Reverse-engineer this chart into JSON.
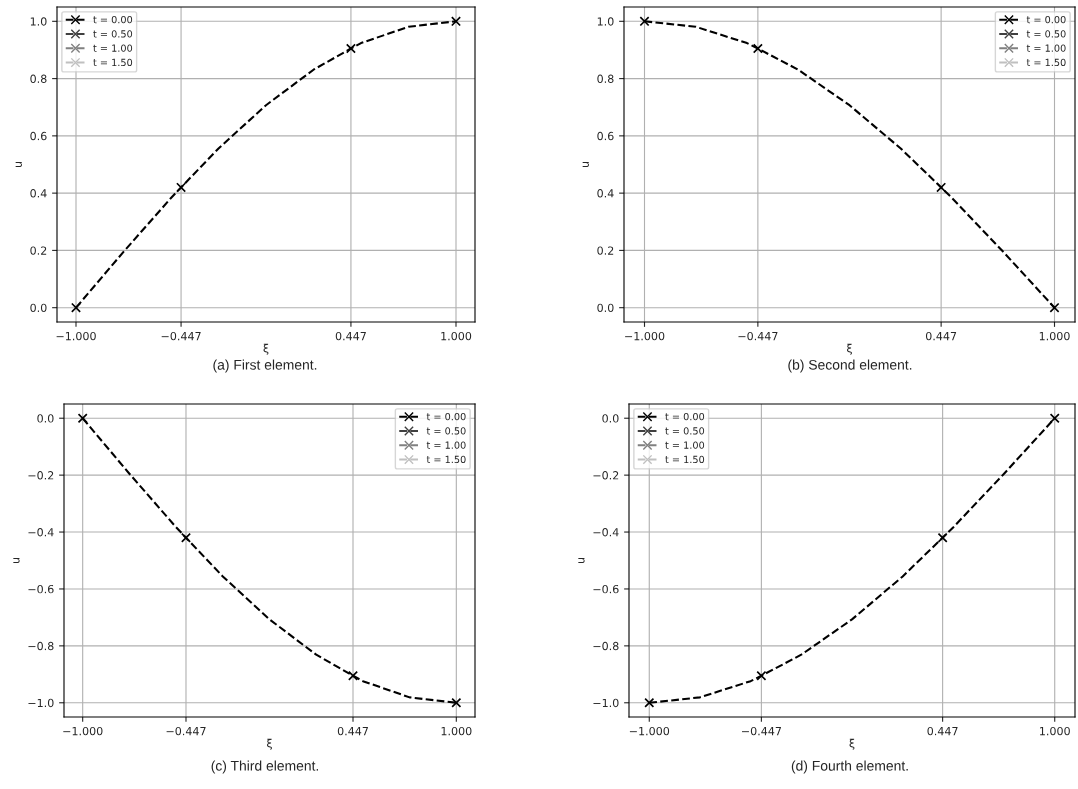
{
  "chart_data": [
    {
      "type": "line",
      "xlabel": "ξ",
      "ylabel": "u",
      "annotations": [
        "(a) First element."
      ],
      "xlim": [
        -1.1,
        1.1
      ],
      "xticks": [
        {
          "value": -1,
          "label": "−1.000"
        },
        {
          "value": -0.447,
          "label": "−0.447"
        },
        {
          "value": 0.447,
          "label": "0.447"
        },
        {
          "value": 1,
          "label": "1.000"
        }
      ],
      "ylim": [
        -0.05,
        1.05
      ],
      "yticks": [
        {
          "value": 0,
          "label": "0.0"
        },
        {
          "value": 0.2,
          "label": "0.2"
        },
        {
          "value": 0.4,
          "label": "0.4"
        },
        {
          "value": 0.6,
          "label": "0.6"
        },
        {
          "value": 0.8,
          "label": "0.8"
        },
        {
          "value": 1,
          "label": "1.0"
        }
      ],
      "grid": true,
      "legend": "top left",
      "series": [
        {
          "color": "#000000",
          "line_style": "dashed",
          "marker": "none",
          "x": [
            -1,
            -0.75,
            -0.5,
            -0.447,
            -0.25,
            0,
            0.25,
            0.447,
            0.5,
            0.75,
            1
          ],
          "values": [
            0,
            0.195,
            0.383,
            0.42,
            0.556,
            0.707,
            0.831,
            0.905,
            0.924,
            0.981,
            1
          ]
        },
        {
          "type": "scatter",
          "name": "t = 0.00",
          "color": "#000000",
          "line_style": "dashed",
          "marker": "cross",
          "x": [
            -1,
            -0.447,
            0.447,
            1
          ],
          "values": [
            0,
            0.42,
            0.905,
            1
          ]
        },
        {
          "type": "scatter",
          "name": "t = 0.50",
          "color": "#404040",
          "line_style": "dashed",
          "marker": "cross"
        },
        {
          "type": "scatter",
          "name": "t = 1.00",
          "color": "#808080",
          "line_style": "dashed",
          "marker": "cross"
        },
        {
          "type": "scatter",
          "name": "t = 1.50",
          "color": "#c0c0c0",
          "line_style": "dashed",
          "marker": "cross"
        }
      ]
    },
    {
      "type": "line",
      "xlabel": "ξ",
      "ylabel": "u",
      "annotations": [
        "(b) Second element."
      ],
      "xlim": [
        -1.1,
        1.1
      ],
      "xticks": [
        {
          "value": -1,
          "label": "−1.000"
        },
        {
          "value": -0.447,
          "label": "−0.447"
        },
        {
          "value": 0.447,
          "label": "0.447"
        },
        {
          "value": 1,
          "label": "1.000"
        }
      ],
      "ylim": [
        -0.05,
        1.05
      ],
      "yticks": [
        {
          "value": 0,
          "label": "0.0"
        },
        {
          "value": 0.2,
          "label": "0.2"
        },
        {
          "value": 0.4,
          "label": "0.4"
        },
        {
          "value": 0.6,
          "label": "0.6"
        },
        {
          "value": 0.8,
          "label": "0.8"
        },
        {
          "value": 1,
          "label": "1.0"
        }
      ],
      "grid": true,
      "legend": "top right",
      "series": [
        {
          "color": "#000000",
          "line_style": "dashed",
          "marker": "none",
          "x": [
            -1,
            -0.75,
            -0.5,
            -0.447,
            -0.25,
            0,
            0.25,
            0.447,
            0.5,
            0.75,
            1
          ],
          "values": [
            1,
            0.981,
            0.924,
            0.905,
            0.831,
            0.707,
            0.556,
            0.42,
            0.383,
            0.195,
            0
          ]
        },
        {
          "type": "scatter",
          "name": "t = 0.00",
          "color": "#000000",
          "line_style": "dashed",
          "marker": "cross",
          "x": [
            -1,
            -0.447,
            0.447,
            1
          ],
          "values": [
            1,
            0.905,
            0.42,
            0
          ]
        },
        {
          "type": "scatter",
          "name": "t = 0.50",
          "color": "#404040",
          "line_style": "dashed",
          "marker": "cross"
        },
        {
          "type": "scatter",
          "name": "t = 1.00",
          "color": "#808080",
          "line_style": "dashed",
          "marker": "cross"
        },
        {
          "type": "scatter",
          "name": "t = 1.50",
          "color": "#c0c0c0",
          "line_style": "dashed",
          "marker": "cross"
        }
      ]
    },
    {
      "type": "line",
      "xlabel": "ξ",
      "ylabel": "u",
      "annotations": [
        "(c) Third element."
      ],
      "xlim": [
        -1.1,
        1.1
      ],
      "xticks": [
        {
          "value": -1,
          "label": "−1.000"
        },
        {
          "value": -0.447,
          "label": "−0.447"
        },
        {
          "value": 0.447,
          "label": "0.447"
        },
        {
          "value": 1,
          "label": "1.000"
        }
      ],
      "ylim": [
        -1.05,
        0.05
      ],
      "yticks": [
        {
          "value": -1,
          "label": "−1.0"
        },
        {
          "value": -0.8,
          "label": "−0.8"
        },
        {
          "value": -0.6,
          "label": "−0.6"
        },
        {
          "value": -0.4,
          "label": "−0.4"
        },
        {
          "value": -0.2,
          "label": "−0.2"
        },
        {
          "value": 0,
          "label": "0.0"
        }
      ],
      "grid": true,
      "legend": "top right",
      "series": [
        {
          "color": "#000000",
          "line_style": "dashed",
          "marker": "none",
          "x": [
            -1,
            -0.75,
            -0.5,
            -0.447,
            -0.25,
            0,
            0.25,
            0.447,
            0.5,
            0.75,
            1
          ],
          "values": [
            0,
            -0.195,
            -0.383,
            -0.42,
            -0.556,
            -0.707,
            -0.831,
            -0.905,
            -0.924,
            -0.981,
            -1
          ]
        },
        {
          "type": "scatter",
          "name": "t = 0.00",
          "color": "#000000",
          "line_style": "dashed",
          "marker": "cross",
          "x": [
            -1,
            -0.447,
            0.447,
            1
          ],
          "values": [
            0,
            -0.42,
            -0.905,
            -1
          ]
        },
        {
          "type": "scatter",
          "name": "t = 0.50",
          "color": "#404040",
          "line_style": "dashed",
          "marker": "cross"
        },
        {
          "type": "scatter",
          "name": "t = 1.00",
          "color": "#808080",
          "line_style": "dashed",
          "marker": "cross"
        },
        {
          "type": "scatter",
          "name": "t = 1.50",
          "color": "#c0c0c0",
          "line_style": "dashed",
          "marker": "cross"
        }
      ]
    },
    {
      "type": "line",
      "xlabel": "ξ",
      "ylabel": "u",
      "annotations": [
        "(d) Fourth element."
      ],
      "xlim": [
        -1.1,
        1.1
      ],
      "xticks": [
        {
          "value": -1,
          "label": "−1.000"
        },
        {
          "value": -0.447,
          "label": "−0.447"
        },
        {
          "value": 0.447,
          "label": "0.447"
        },
        {
          "value": 1,
          "label": "1.000"
        }
      ],
      "ylim": [
        -1.05,
        0.05
      ],
      "yticks": [
        {
          "value": -1,
          "label": "−1.0"
        },
        {
          "value": -0.8,
          "label": "−0.8"
        },
        {
          "value": -0.6,
          "label": "−0.6"
        },
        {
          "value": -0.4,
          "label": "−0.4"
        },
        {
          "value": -0.2,
          "label": "−0.2"
        },
        {
          "value": 0,
          "label": "0.0"
        }
      ],
      "grid": true,
      "legend": "top left",
      "series": [
        {
          "color": "#000000",
          "line_style": "dashed",
          "marker": "none",
          "x": [
            -1,
            -0.75,
            -0.5,
            -0.447,
            -0.25,
            0,
            0.25,
            0.447,
            0.5,
            0.75,
            1
          ],
          "values": [
            -1,
            -0.981,
            -0.924,
            -0.905,
            -0.831,
            -0.707,
            -0.556,
            -0.42,
            -0.383,
            -0.195,
            0
          ]
        },
        {
          "type": "scatter",
          "name": "t = 0.00",
          "color": "#000000",
          "line_style": "dashed",
          "marker": "cross",
          "x": [
            -1,
            -0.447,
            0.447,
            1
          ],
          "values": [
            -1,
            -0.905,
            -0.42,
            0
          ]
        },
        {
          "type": "scatter",
          "name": "t = 0.50",
          "color": "#404040",
          "line_style": "dashed",
          "marker": "cross"
        },
        {
          "type": "scatter",
          "name": "t = 1.00",
          "color": "#808080",
          "line_style": "dashed",
          "marker": "cross"
        },
        {
          "type": "scatter",
          "name": "t = 1.50",
          "color": "#c0c0c0",
          "line_style": "dashed",
          "marker": "cross"
        }
      ]
    }
  ]
}
